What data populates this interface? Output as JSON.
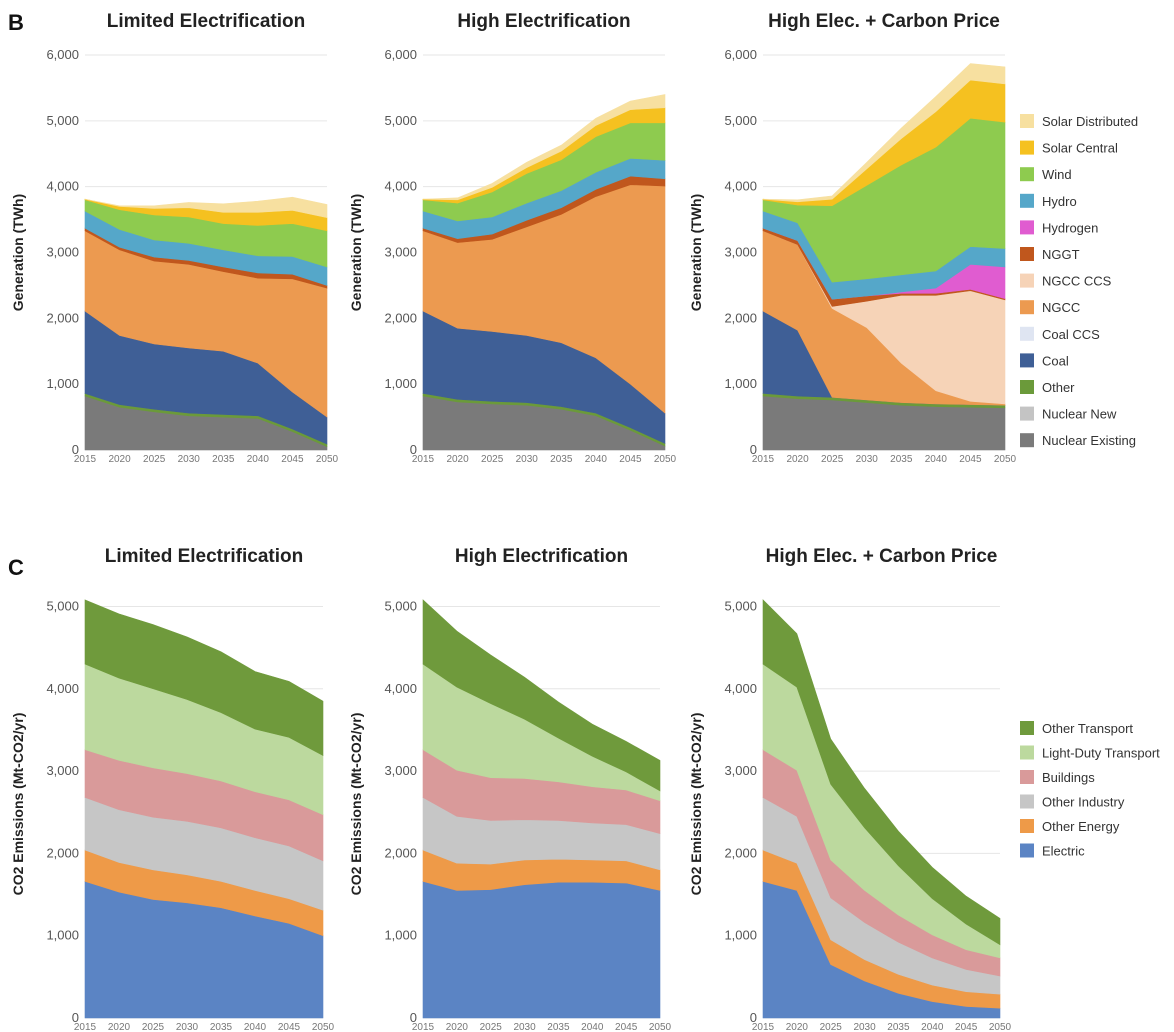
{
  "panels": [
    {
      "letter": "B"
    },
    {
      "letter": "C"
    }
  ],
  "legend_generation": [
    {
      "name": "Solar Distributed",
      "color": "#f7e0a0"
    },
    {
      "name": "Solar Central",
      "color": "#f5c120"
    },
    {
      "name": "Wind",
      "color": "#8ecb4f"
    },
    {
      "name": "Hydro",
      "color": "#55a7c9"
    },
    {
      "name": "Hydrogen",
      "color": "#e05cd0"
    },
    {
      "name": "NGGT",
      "color": "#c0571d"
    },
    {
      "name": "NGCC CCS",
      "color": "#f6d3b7"
    },
    {
      "name": "NGCC",
      "color": "#ec9a50"
    },
    {
      "name": "Coal CCS",
      "color": "#dfe5f2"
    },
    {
      "name": "Coal",
      "color": "#3f5f96"
    },
    {
      "name": "Other",
      "color": "#6b9a3a"
    },
    {
      "name": "Nuclear New",
      "color": "#c4c4c4"
    },
    {
      "name": "Nuclear Existing",
      "color": "#7a7a7a"
    }
  ],
  "legend_emissions": [
    {
      "name": "Other Transport",
      "color": "#6f9a3c"
    },
    {
      "name": "Light-Duty Transport",
      "color": "#bcd99e"
    },
    {
      "name": "Buildings",
      "color": "#d99a9a"
    },
    {
      "name": "Other Industry",
      "color": "#c6c6c6"
    },
    {
      "name": "Other Energy",
      "color": "#ee9a48"
    },
    {
      "name": "Electric",
      "color": "#5b84c4"
    }
  ],
  "chart_data": [
    {
      "type": "area",
      "panel": "B",
      "title": "Limited Electrification",
      "ylabel": "Generation (TWh)",
      "x": [
        "2015",
        "2020",
        "2025",
        "2030",
        "2035",
        "2040",
        "2045",
        "2050"
      ],
      "yticks": [
        "0",
        "1,000",
        "2,000",
        "3,000",
        "4,000",
        "5,000",
        "6,000"
      ],
      "ylim": [
        0,
        6000
      ],
      "stacked": true,
      "series": [
        {
          "name": "Nuclear Existing",
          "values": [
            820,
            650,
            580,
            520,
            500,
            480,
            280,
            50
          ]
        },
        {
          "name": "Nuclear New",
          "values": [
            0,
            0,
            0,
            0,
            0,
            0,
            0,
            0
          ]
        },
        {
          "name": "Other",
          "values": [
            40,
            40,
            40,
            40,
            40,
            40,
            40,
            40
          ]
        },
        {
          "name": "Coal",
          "values": [
            1250,
            1050,
            990,
            990,
            960,
            800,
            560,
            410
          ]
        },
        {
          "name": "Coal CCS",
          "values": [
            0,
            0,
            0,
            0,
            0,
            0,
            0,
            0
          ]
        },
        {
          "name": "NGCC",
          "values": [
            1220,
            1300,
            1260,
            1270,
            1210,
            1290,
            1720,
            1960
          ]
        },
        {
          "name": "NGCC CCS",
          "values": [
            0,
            0,
            0,
            0,
            0,
            0,
            0,
            0
          ]
        },
        {
          "name": "NGGT",
          "values": [
            40,
            40,
            60,
            60,
            70,
            80,
            70,
            40
          ]
        },
        {
          "name": "Hydrogen",
          "values": [
            0,
            0,
            0,
            0,
            0,
            0,
            0,
            0
          ]
        },
        {
          "name": "Hydro",
          "values": [
            260,
            270,
            260,
            260,
            260,
            260,
            270,
            280
          ]
        },
        {
          "name": "Wind",
          "values": [
            170,
            300,
            380,
            400,
            400,
            460,
            500,
            550
          ]
        },
        {
          "name": "Solar Central",
          "values": [
            10,
            50,
            100,
            140,
            170,
            200,
            200,
            200
          ]
        },
        {
          "name": "Solar Distributed",
          "values": [
            0,
            10,
            40,
            80,
            130,
            170,
            200,
            200
          ]
        }
      ]
    },
    {
      "type": "area",
      "panel": "B",
      "title": "High Electrification",
      "ylabel": "Generation (TWh)",
      "x": [
        "2015",
        "2020",
        "2025",
        "2030",
        "2035",
        "2040",
        "2045",
        "2050"
      ],
      "yticks": [
        "0",
        "1,000",
        "2,000",
        "3,000",
        "4,000",
        "5,000",
        "6,000"
      ],
      "ylim": [
        0,
        6000
      ],
      "stacked": true,
      "series": [
        {
          "name": "Nuclear Existing",
          "values": [
            820,
            730,
            700,
            680,
            620,
            520,
            300,
            60
          ]
        },
        {
          "name": "Nuclear New",
          "values": [
            0,
            0,
            0,
            0,
            0,
            0,
            0,
            0
          ]
        },
        {
          "name": "Other",
          "values": [
            40,
            40,
            40,
            40,
            40,
            40,
            40,
            40
          ]
        },
        {
          "name": "Coal",
          "values": [
            1250,
            1080,
            1060,
            1020,
            970,
            840,
            660,
            460
          ]
        },
        {
          "name": "Coal CCS",
          "values": [
            0,
            0,
            0,
            0,
            0,
            0,
            0,
            0
          ]
        },
        {
          "name": "NGCC",
          "values": [
            1220,
            1300,
            1400,
            1650,
            1950,
            2450,
            3030,
            3450
          ]
        },
        {
          "name": "NGCC CCS",
          "values": [
            0,
            0,
            0,
            0,
            0,
            0,
            0,
            0
          ]
        },
        {
          "name": "NGGT",
          "values": [
            40,
            60,
            80,
            100,
            100,
            110,
            130,
            110
          ]
        },
        {
          "name": "Hydrogen",
          "values": [
            0,
            0,
            0,
            0,
            0,
            0,
            0,
            0
          ]
        },
        {
          "name": "Hydro",
          "values": [
            260,
            270,
            260,
            260,
            260,
            260,
            270,
            280
          ]
        },
        {
          "name": "Wind",
          "values": [
            170,
            270,
            380,
            450,
            470,
            540,
            540,
            570
          ]
        },
        {
          "name": "Solar Central",
          "values": [
            10,
            50,
            70,
            90,
            130,
            170,
            200,
            230
          ]
        },
        {
          "name": "Solar Distributed",
          "values": [
            0,
            30,
            60,
            80,
            90,
            110,
            130,
            200
          ]
        }
      ]
    },
    {
      "type": "area",
      "panel": "B",
      "title": "High Elec. + Carbon Price",
      "ylabel": "Generation (TWh)",
      "x": [
        "2015",
        "2020",
        "2025",
        "2030",
        "2035",
        "2040",
        "2045",
        "2050"
      ],
      "yticks": [
        "0",
        "1,000",
        "2,000",
        "3,000",
        "4,000",
        "5,000",
        "6,000"
      ],
      "ylim": [
        0,
        6000
      ],
      "stacked": true,
      "series": [
        {
          "name": "Nuclear Existing",
          "values": [
            820,
            780,
            760,
            720,
            680,
            660,
            650,
            640
          ]
        },
        {
          "name": "Nuclear New",
          "values": [
            0,
            0,
            0,
            0,
            0,
            0,
            0,
            0
          ]
        },
        {
          "name": "Other",
          "values": [
            40,
            40,
            40,
            40,
            40,
            40,
            40,
            40
          ]
        },
        {
          "name": "Coal",
          "values": [
            1250,
            1000,
            0,
            0,
            0,
            0,
            0,
            0
          ]
        },
        {
          "name": "Coal CCS",
          "values": [
            0,
            0,
            0,
            0,
            0,
            0,
            0,
            0
          ]
        },
        {
          "name": "NGCC",
          "values": [
            1220,
            1300,
            1350,
            1100,
            600,
            200,
            50,
            20
          ]
        },
        {
          "name": "NGCC CCS",
          "values": [
            0,
            0,
            30,
            400,
            1030,
            1450,
            1680,
            1580
          ]
        },
        {
          "name": "NGGT",
          "values": [
            40,
            60,
            110,
            80,
            30,
            30,
            20,
            20
          ]
        },
        {
          "name": "Hydrogen",
          "values": [
            0,
            0,
            0,
            0,
            20,
            80,
            380,
            480
          ]
        },
        {
          "name": "Hydro",
          "values": [
            260,
            270,
            260,
            260,
            260,
            260,
            270,
            280
          ]
        },
        {
          "name": "Wind",
          "values": [
            170,
            270,
            1160,
            1420,
            1670,
            1880,
            1950,
            1920
          ]
        },
        {
          "name": "Solar Central",
          "values": [
            10,
            50,
            100,
            250,
            400,
            540,
            580,
            580
          ]
        },
        {
          "name": "Solar Distributed",
          "values": [
            0,
            30,
            50,
            100,
            160,
            230,
            250,
            260
          ]
        }
      ]
    },
    {
      "type": "area",
      "panel": "C",
      "title": "Limited Electrification",
      "ylabel": "CO2 Emissions (Mt-CO2/yr)",
      "x": [
        "2015",
        "2020",
        "2025",
        "2030",
        "2035",
        "2040",
        "2045",
        "2050"
      ],
      "yticks": [
        "0",
        "1,000",
        "2,000",
        "3,000",
        "4,000",
        "5,000"
      ],
      "ylim": [
        0,
        5200
      ],
      "stacked": true,
      "series": [
        {
          "name": "Electric",
          "values": [
            1660,
            1530,
            1440,
            1400,
            1340,
            1240,
            1150,
            1000
          ]
        },
        {
          "name": "Other Energy",
          "values": [
            380,
            360,
            360,
            340,
            320,
            310,
            300,
            310
          ]
        },
        {
          "name": "Other Industry",
          "values": [
            640,
            640,
            640,
            650,
            650,
            640,
            640,
            600
          ]
        },
        {
          "name": "Buildings",
          "values": [
            580,
            600,
            600,
            580,
            570,
            560,
            560,
            560
          ]
        },
        {
          "name": "Light-Duty Transport",
          "values": [
            1040,
            1000,
            960,
            900,
            830,
            760,
            760,
            720
          ]
        },
        {
          "name": "Other Transport",
          "values": [
            780,
            780,
            780,
            760,
            740,
            700,
            680,
            660
          ]
        }
      ]
    },
    {
      "type": "area",
      "panel": "C",
      "title": "High Electrification",
      "ylabel": "CO2 Emissions (Mt-CO2/yr)",
      "x": [
        "2015",
        "2020",
        "2025",
        "2030",
        "2035",
        "2040",
        "2045",
        "2050"
      ],
      "yticks": [
        "0",
        "1,000",
        "2,000",
        "3,000",
        "4,000",
        "5,000"
      ],
      "ylim": [
        0,
        5200
      ],
      "stacked": true,
      "series": [
        {
          "name": "Electric",
          "values": [
            1660,
            1550,
            1560,
            1620,
            1650,
            1650,
            1640,
            1550
          ]
        },
        {
          "name": "Other Energy",
          "values": [
            380,
            330,
            310,
            300,
            280,
            270,
            270,
            250
          ]
        },
        {
          "name": "Other Industry",
          "values": [
            640,
            570,
            530,
            490,
            470,
            450,
            440,
            440
          ]
        },
        {
          "name": "Buildings",
          "values": [
            580,
            560,
            520,
            500,
            470,
            440,
            420,
            400
          ]
        },
        {
          "name": "Light-Duty Transport",
          "values": [
            1040,
            1010,
            900,
            720,
            530,
            370,
            220,
            120
          ]
        },
        {
          "name": "Other Transport",
          "values": [
            780,
            680,
            590,
            510,
            440,
            390,
            370,
            370
          ]
        }
      ]
    },
    {
      "type": "area",
      "panel": "C",
      "title": "High Elec. + Carbon Price",
      "ylabel": "CO2 Emissions (Mt-CO2/yr)",
      "x": [
        "2015",
        "2020",
        "2025",
        "2030",
        "2035",
        "2040",
        "2045",
        "2050"
      ],
      "yticks": [
        "0",
        "1,000",
        "2,000",
        "3,000",
        "4,000",
        "5,000"
      ],
      "ylim": [
        0,
        5200
      ],
      "stacked": true,
      "series": [
        {
          "name": "Electric",
          "values": [
            1660,
            1550,
            650,
            450,
            300,
            200,
            140,
            120
          ]
        },
        {
          "name": "Other Energy",
          "values": [
            380,
            330,
            300,
            260,
            230,
            200,
            180,
            170
          ]
        },
        {
          "name": "Other Industry",
          "values": [
            640,
            570,
            510,
            450,
            390,
            330,
            270,
            220
          ]
        },
        {
          "name": "Buildings",
          "values": [
            580,
            560,
            460,
            390,
            330,
            280,
            240,
            220
          ]
        },
        {
          "name": "Light-Duty Transport",
          "values": [
            1040,
            1010,
            920,
            760,
            600,
            440,
            310,
            160
          ]
        },
        {
          "name": "Other Transport",
          "values": [
            780,
            650,
            550,
            480,
            420,
            380,
            340,
            320
          ]
        }
      ]
    }
  ]
}
